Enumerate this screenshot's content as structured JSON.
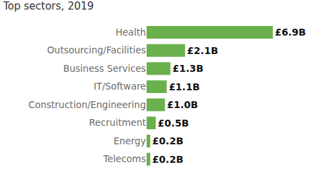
{
  "chart_data": {
    "type": "bar",
    "title": "Top sectors, 2019",
    "orientation": "horizontal",
    "categories": [
      "Health",
      "Outsourcing/Facilities",
      "Business Services",
      "IT/Software",
      "Construction/Engineering",
      "Recruitment",
      "Energy",
      "Telecoms"
    ],
    "values": [
      6.9,
      2.1,
      1.3,
      1.1,
      1.0,
      0.5,
      0.2,
      0.2
    ],
    "value_labels": [
      "£6.9B",
      "£2.1B",
      "£1.3B",
      "£1.1B",
      "£1.0B",
      "£0.5B",
      "£0.2B",
      "£0.2B"
    ],
    "color": "#6ab04c",
    "data_labels": true,
    "tick_labels": "y",
    "grid": false
  }
}
